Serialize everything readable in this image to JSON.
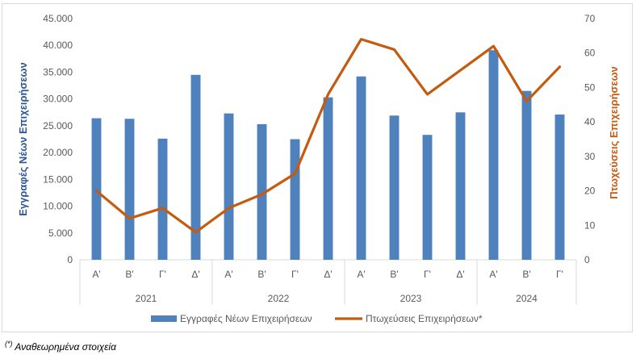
{
  "chart_data": {
    "type": "bar",
    "categories": [
      "Α'",
      "Β'",
      "Γ'",
      "Δ'",
      "Α'",
      "Β'",
      "Γ'",
      "Δ'",
      "Α'",
      "Β'",
      "Γ'",
      "Δ'",
      "Α'",
      "Β'",
      "Γ'"
    ],
    "year_groups": [
      {
        "label": "2021",
        "count": 4
      },
      {
        "label": "2022",
        "count": 4
      },
      {
        "label": "2023",
        "count": 4
      },
      {
        "label": "2024",
        "count": 3
      }
    ],
    "series": [
      {
        "name": "Εγγραφές Νέων Επιχειρήσεων",
        "type": "bar",
        "axis": "left",
        "color": "#4f81bd",
        "values": [
          26400,
          26300,
          22600,
          34500,
          27300,
          25300,
          22500,
          30300,
          34200,
          26900,
          23300,
          27500,
          39100,
          31500,
          27100
        ]
      },
      {
        "name": "Πτωχεύσεις Επιχειρήσεων*",
        "type": "line",
        "axis": "right",
        "color": "#c55a11",
        "values": [
          20,
          12,
          15,
          8,
          15,
          19,
          25,
          48,
          64,
          61,
          48,
          55,
          62,
          46,
          56
        ]
      }
    ],
    "y_left": {
      "label": "Εγγραφές Νέων Επιχειρήσεων",
      "ylim": [
        0,
        45000
      ],
      "ticks": [
        "0",
        "5.000",
        "10.000",
        "15.000",
        "20.000",
        "25.000",
        "30.000",
        "35.000",
        "40.000",
        "45.000"
      ]
    },
    "y_right": {
      "label": "Πτωχεύσεις Επιχειρήσεων",
      "ylim": [
        0,
        70
      ],
      "ticks": [
        "0",
        "10",
        "20",
        "30",
        "40",
        "50",
        "60",
        "70"
      ]
    },
    "grid": false,
    "legend": "bottom"
  },
  "footnote": {
    "mark": "(*)",
    "text": " Αναθεωρημένα στοιχεία"
  }
}
